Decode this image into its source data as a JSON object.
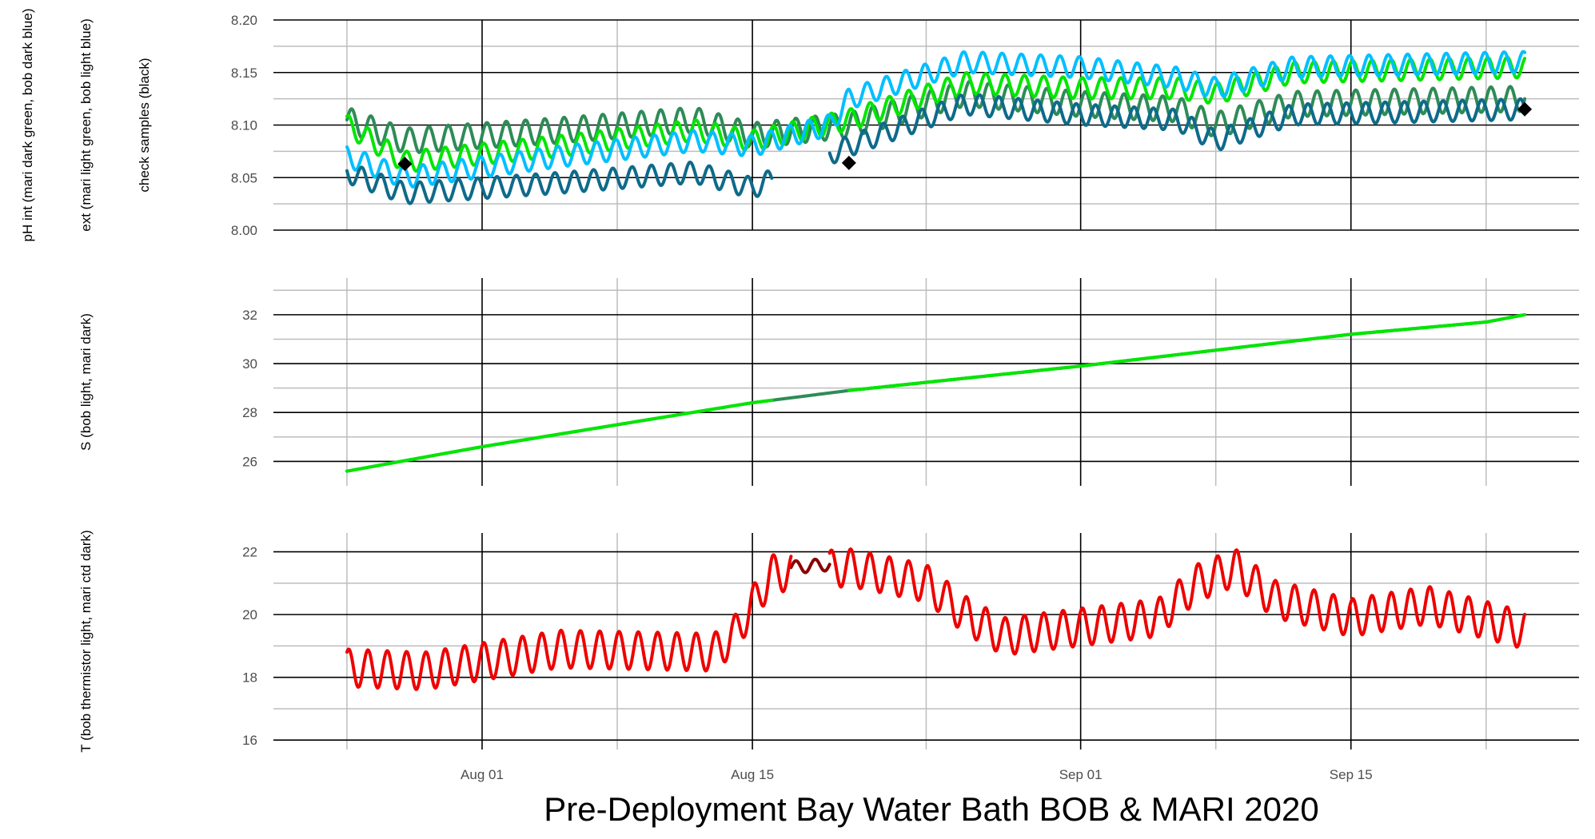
{
  "title": "Pre-Deployment Bay Water Bath BOB & MARI 2020",
  "x_ticks": [
    "Aug 01",
    "Aug 15",
    "Sep 01",
    "Sep 15"
  ],
  "chart_data": [
    {
      "type": "line",
      "panel": "pH",
      "ylabel_lines": [
        "pH int (mari dark green, bob dark blue)",
        "ext (mari light green, bob light blue)",
        "check samples (black)"
      ],
      "ylim": [
        8.0,
        8.2
      ],
      "y_ticks": [
        "8.00",
        "8.05",
        "8.10",
        "8.15",
        "8.20"
      ],
      "x_range": [
        "2020-07-25",
        "2020-09-24"
      ],
      "series": [
        {
          "color": "#2e8b57",
          "base": [
            [
              "2020-07-25",
              8.105
            ],
            [
              "2020-07-28",
              8.085
            ],
            [
              "2020-08-05",
              8.095
            ],
            [
              "2020-08-12",
              8.105
            ],
            [
              "2020-08-15",
              8.09
            ],
            [
              "2020-08-20",
              8.1
            ],
            [
              "2020-08-26",
              8.13
            ],
            [
              "2020-09-01",
              8.12
            ],
            [
              "2020-09-06",
              8.115
            ],
            [
              "2020-09-08",
              8.1
            ],
            [
              "2020-09-12",
              8.12
            ],
            [
              "2020-09-24",
              8.125
            ]
          ],
          "amp": 0.012,
          "gap": []
        },
        {
          "color": "#00e600",
          "base": [
            [
              "2020-07-25",
              8.1
            ],
            [
              "2020-07-28",
              8.065
            ],
            [
              "2020-08-05",
              8.08
            ],
            [
              "2020-08-12",
              8.095
            ],
            [
              "2020-08-15",
              8.085
            ],
            [
              "2020-08-20",
              8.105
            ],
            [
              "2020-08-26",
              8.14
            ],
            [
              "2020-09-01",
              8.135
            ],
            [
              "2020-09-06",
              8.135
            ],
            [
              "2020-09-08",
              8.13
            ],
            [
              "2020-09-12",
              8.15
            ],
            [
              "2020-09-24",
              8.155
            ]
          ],
          "amp": 0.01,
          "gap": []
        },
        {
          "color": "#00bfff",
          "base": [
            [
              "2020-07-25",
              8.07
            ],
            [
              "2020-07-28",
              8.05
            ],
            [
              "2020-08-05",
              8.07
            ],
            [
              "2020-08-12",
              8.085
            ],
            [
              "2020-08-15",
              8.08
            ],
            [
              "2020-08-19",
              8.1
            ],
            [
              "2020-08-20",
              8.125
            ],
            [
              "2020-08-26",
              8.16
            ],
            [
              "2020-09-01",
              8.155
            ],
            [
              "2020-09-06",
              8.145
            ],
            [
              "2020-09-08",
              8.135
            ],
            [
              "2020-09-12",
              8.155
            ],
            [
              "2020-09-24",
              8.16
            ]
          ],
          "amp": 0.01,
          "gap": []
        },
        {
          "color": "#0e6a8a",
          "base": [
            [
              "2020-07-25",
              8.055
            ],
            [
              "2020-07-28",
              8.035
            ],
            [
              "2020-08-05",
              8.045
            ],
            [
              "2020-08-12",
              8.055
            ],
            [
              "2020-08-14",
              8.045
            ],
            [
              "2020-08-15",
              8.04
            ],
            [
              "2020-08-20",
              8.08
            ],
            [
              "2020-08-26",
              8.12
            ],
            [
              "2020-09-01",
              8.11
            ],
            [
              "2020-09-06",
              8.105
            ],
            [
              "2020-09-08",
              8.085
            ],
            [
              "2020-09-12",
              8.11
            ],
            [
              "2020-09-24",
              8.115
            ]
          ],
          "amp": 0.01,
          "gap": [
            [
              "2020-08-16",
              "2020-08-19"
            ]
          ]
        }
      ],
      "check_samples": [
        {
          "x": "2020-07-28",
          "y": 8.063
        },
        {
          "x": "2020-08-20",
          "y": 8.064
        },
        {
          "x": "2020-09-24",
          "y": 8.115
        }
      ]
    },
    {
      "type": "line",
      "panel": "S",
      "ylabel_lines": [
        "S (bob light, mari dark)"
      ],
      "ylim": [
        25,
        33.5
      ],
      "y_ticks": [
        "26",
        "28",
        "30",
        "32"
      ],
      "series": [
        {
          "color": "#2e8b57",
          "base": [
            [
              "2020-07-25",
              25.6
            ],
            [
              "2020-08-01",
              26.6
            ],
            [
              "2020-08-15",
              28.4
            ],
            [
              "2020-08-20",
              28.9
            ],
            [
              "2020-09-01",
              29.9
            ],
            [
              "2020-09-15",
              31.2
            ],
            [
              "2020-09-22",
              31.7
            ],
            [
              "2020-09-24",
              32.0
            ]
          ],
          "amp": 0,
          "gap": []
        },
        {
          "color": "#00e600",
          "base": [
            [
              "2020-07-25",
              25.6
            ],
            [
              "2020-08-01",
              26.6
            ],
            [
              "2020-08-15",
              28.4
            ],
            [
              "2020-08-20",
              28.9
            ],
            [
              "2020-09-01",
              29.9
            ],
            [
              "2020-09-15",
              31.2
            ],
            [
              "2020-09-22",
              31.7
            ],
            [
              "2020-09-24",
              32.0
            ]
          ],
          "amp": 0,
          "gap": [
            [
              "2020-08-16",
              "2020-08-20"
            ]
          ]
        }
      ]
    },
    {
      "type": "line",
      "panel": "T",
      "ylabel_lines": [
        "T (bob thermistor light, mari ctd dark)"
      ],
      "ylim": [
        15.7,
        22.6
      ],
      "y_ticks": [
        "16",
        "18",
        "20",
        "22"
      ],
      "series": [
        {
          "color": "#8b0000",
          "base": [
            [
              "2020-08-17",
              21.5
            ],
            [
              "2020-08-19",
              21.6
            ]
          ],
          "amp": 0.2,
          "gap": []
        },
        {
          "color": "#ee0000",
          "base": [
            [
              "2020-07-25",
              18.3
            ],
            [
              "2020-07-29",
              18.2
            ],
            [
              "2020-08-05",
              18.9
            ],
            [
              "2020-08-13",
              18.8
            ],
            [
              "2020-08-14",
              19.3
            ],
            [
              "2020-08-16",
              21.3
            ],
            [
              "2020-08-20",
              21.5
            ],
            [
              "2020-08-24",
              21.0
            ],
            [
              "2020-08-26",
              20.0
            ],
            [
              "2020-08-28",
              19.3
            ],
            [
              "2020-09-05",
              19.9
            ],
            [
              "2020-09-07",
              21.0
            ],
            [
              "2020-09-09",
              21.5
            ],
            [
              "2020-09-11",
              20.5
            ],
            [
              "2020-09-15",
              19.9
            ],
            [
              "2020-09-19",
              20.3
            ],
            [
              "2020-09-24",
              19.5
            ]
          ],
          "amp": 0.6,
          "gap": [
            [
              "2020-08-17",
              "2020-08-19"
            ]
          ]
        }
      ]
    }
  ]
}
